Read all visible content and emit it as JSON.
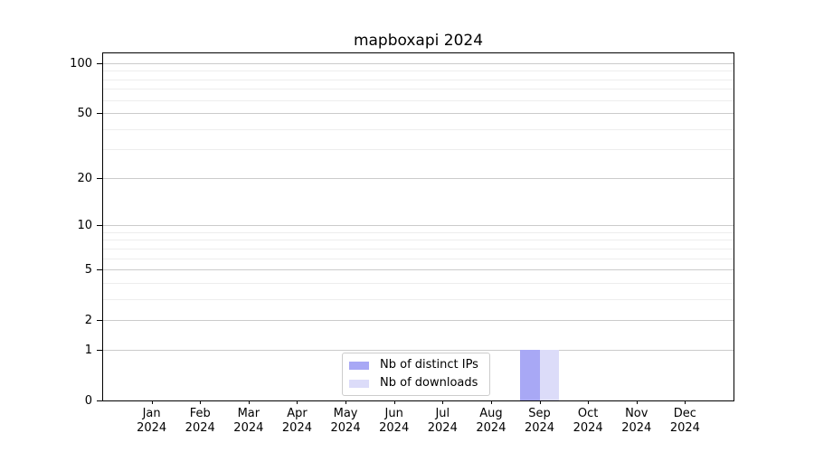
{
  "chart_data": {
    "type": "bar",
    "title": "mapboxapi 2024",
    "categories": [
      "Jan",
      "Feb",
      "Mar",
      "Apr",
      "May",
      "Jun",
      "Jul",
      "Aug",
      "Sep",
      "Oct",
      "Nov",
      "Dec"
    ],
    "x_tick_year": "2024",
    "series": [
      {
        "name": "Nb of distinct IPs",
        "color": "#a8a8f5",
        "values": [
          0,
          0,
          0,
          0,
          0,
          0,
          0,
          0,
          1,
          0,
          0,
          0
        ]
      },
      {
        "name": "Nb of downloads",
        "color": "#dcdcf9",
        "values": [
          0,
          0,
          0,
          0,
          0,
          0,
          0,
          0,
          1,
          0,
          0,
          0
        ]
      }
    ],
    "y_axis": {
      "scale": "log1p",
      "ticks": [
        0,
        1,
        2,
        5,
        10,
        20,
        50,
        100
      ],
      "minor_ticks": [
        3,
        4,
        6,
        7,
        8,
        9,
        30,
        40,
        60,
        70,
        80,
        90
      ],
      "ylim": [
        0,
        115
      ]
    },
    "grid": {
      "major_color": "#cbcbcb",
      "minor_color": "#ededed",
      "on": true
    },
    "legend": {
      "position": "lower center"
    },
    "colors": {
      "axis": "#000000",
      "background": "#ffffff",
      "text": "#000000"
    }
  }
}
